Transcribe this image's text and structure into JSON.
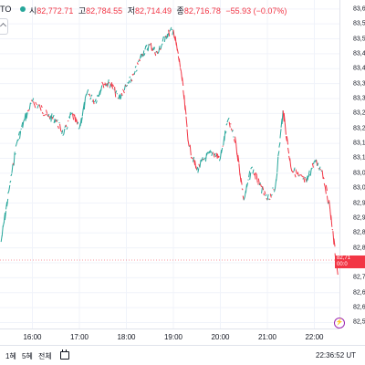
{
  "header": {
    "symbol": "TO",
    "open_label": "시",
    "open": "82,772.71",
    "high_label": "고",
    "high": "82,784.55",
    "low_label": "저",
    "low": "82,714.49",
    "close_label": "종",
    "close": "82,716.78",
    "change": "−55.93 (−0.07%)"
  },
  "colors": {
    "up": "#26a69a",
    "down": "#f23645",
    "grid": "#f0f3fa",
    "text": "#131722"
  },
  "yaxis": {
    "ticks": [
      "83,600",
      "83,550",
      "83,500",
      "83,450",
      "83,400",
      "83,350",
      "83,300",
      "83,250",
      "83,200",
      "83,150",
      "83,100",
      "83,050",
      "83,000",
      "82,950",
      "82,900",
      "82,850",
      "82,800",
      "82,750",
      "82,700",
      "82,650",
      "82,600",
      "82,550"
    ]
  },
  "price_label": {
    "line1": "82,71",
    "line2": "00:0"
  },
  "xaxis": {
    "ticks": [
      "16:00",
      "17:00",
      "18:00",
      "19:00",
      "20:00",
      "21:00",
      "22:00"
    ]
  },
  "toolbar": {
    "range_1m": "1혜",
    "range_5m": "5혜",
    "range_all": "전체",
    "clock": "22:36:52 UT"
  },
  "icons": {
    "calendar": "calendar-icon",
    "bolt": "lightning-icon"
  },
  "chart_data": {
    "type": "line",
    "x": [
      "15:20",
      "15:30",
      "15:40",
      "15:50",
      "16:00",
      "16:10",
      "16:20",
      "16:30",
      "16:40",
      "16:50",
      "17:00",
      "17:10",
      "17:20",
      "17:30",
      "17:40",
      "17:50",
      "18:00",
      "18:10",
      "18:20",
      "18:30",
      "18:40",
      "18:50",
      "19:00",
      "19:10",
      "19:20",
      "19:30",
      "19:40",
      "19:50",
      "20:00",
      "20:10",
      "20:20",
      "20:30",
      "20:40",
      "20:50",
      "21:00",
      "21:10",
      "21:20",
      "21:30",
      "21:40",
      "21:50",
      "22:00",
      "22:10",
      "22:20",
      "22:30"
    ],
    "y": [
      82820,
      82990,
      83150,
      83230,
      83290,
      83270,
      83240,
      83230,
      83180,
      83250,
      83200,
      83320,
      83290,
      83350,
      83350,
      83300,
      83340,
      83380,
      83450,
      83480,
      83450,
      83510,
      83530,
      83390,
      83140,
      83060,
      83100,
      83120,
      83100,
      83230,
      83150,
      82960,
      83070,
      83010,
      82960,
      83000,
      83260,
      83070,
      83040,
      83020,
      83090,
      83060,
      82930,
      82710
    ],
    "ylim": [
      82530,
      83630
    ],
    "grid": true
  }
}
